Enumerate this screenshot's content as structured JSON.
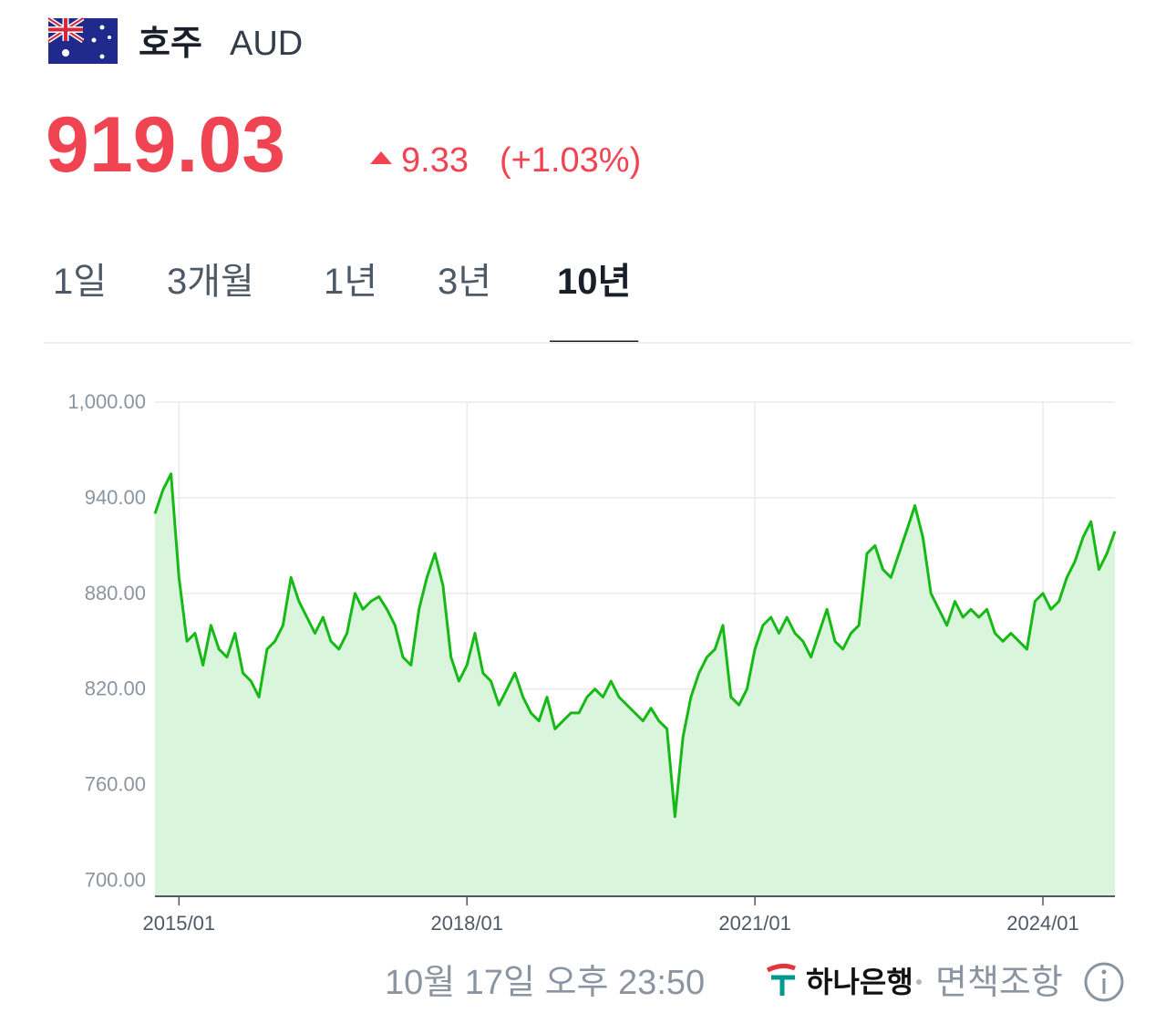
{
  "header": {
    "country": "호주",
    "currency": "AUD",
    "price": "919.03",
    "change": "9.33",
    "change_pct": "(+1.03%)"
  },
  "tabs": {
    "items": [
      "1일",
      "3개월",
      "1년",
      "3년",
      "10년"
    ],
    "active": 4
  },
  "chart_data": {
    "type": "area",
    "color": "#16b916",
    "fill": "#d9f5db",
    "grid": true,
    "x": [
      "2014/10",
      "2014/11",
      "2014/12",
      "2015/01",
      "2015/02",
      "2015/03",
      "2015/04",
      "2015/05",
      "2015/06",
      "2015/07",
      "2015/08",
      "2015/09",
      "2015/10",
      "2015/11",
      "2015/12",
      "2016/01",
      "2016/02",
      "2016/03",
      "2016/04",
      "2016/05",
      "2016/06",
      "2016/07",
      "2016/08",
      "2016/09",
      "2016/10",
      "2016/11",
      "2016/12",
      "2017/01",
      "2017/02",
      "2017/03",
      "2017/04",
      "2017/05",
      "2017/06",
      "2017/07",
      "2017/08",
      "2017/09",
      "2017/10",
      "2017/11",
      "2017/12",
      "2018/01",
      "2018/02",
      "2018/03",
      "2018/04",
      "2018/05",
      "2018/06",
      "2018/07",
      "2018/08",
      "2018/09",
      "2018/10",
      "2018/11",
      "2018/12",
      "2019/01",
      "2019/02",
      "2019/03",
      "2019/04",
      "2019/05",
      "2019/06",
      "2019/07",
      "2019/08",
      "2019/09",
      "2019/10",
      "2019/11",
      "2019/12",
      "2020/01",
      "2020/02",
      "2020/03",
      "2020/04",
      "2020/05",
      "2020/06",
      "2020/07",
      "2020/08",
      "2020/09",
      "2020/10",
      "2020/11",
      "2020/12",
      "2021/01",
      "2021/02",
      "2021/03",
      "2021/04",
      "2021/05",
      "2021/06",
      "2021/07",
      "2021/08",
      "2021/09",
      "2021/10",
      "2021/11",
      "2021/12",
      "2022/01",
      "2022/02",
      "2022/03",
      "2022/04",
      "2022/05",
      "2022/06",
      "2022/07",
      "2022/08",
      "2022/09",
      "2022/10",
      "2022/11",
      "2022/12",
      "2023/01",
      "2023/02",
      "2023/03",
      "2023/04",
      "2023/05",
      "2023/06",
      "2023/07",
      "2023/08",
      "2023/09",
      "2023/10",
      "2023/11",
      "2023/12",
      "2024/01",
      "2024/02",
      "2024/03",
      "2024/04",
      "2024/05",
      "2024/06",
      "2024/07",
      "2024/08",
      "2024/09",
      "2024/10"
    ],
    "values": [
      930,
      945,
      955,
      890,
      850,
      855,
      835,
      860,
      845,
      840,
      855,
      830,
      825,
      815,
      845,
      850,
      860,
      890,
      875,
      865,
      855,
      865,
      850,
      845,
      855,
      880,
      870,
      875,
      878,
      870,
      860,
      840,
      835,
      870,
      890,
      905,
      885,
      840,
      825,
      835,
      855,
      830,
      825,
      810,
      820,
      830,
      815,
      805,
      800,
      815,
      795,
      800,
      805,
      805,
      815,
      820,
      815,
      825,
      815,
      810,
      805,
      800,
      808,
      800,
      795,
      740,
      790,
      815,
      830,
      840,
      845,
      860,
      815,
      810,
      820,
      845,
      860,
      865,
      855,
      865,
      855,
      850,
      840,
      855,
      870,
      850,
      845,
      855,
      860,
      905,
      910,
      895,
      890,
      905,
      920,
      935,
      915,
      880,
      870,
      860,
      875,
      865,
      870,
      865,
      870,
      855,
      850,
      855,
      850,
      845,
      875,
      880,
      870,
      875,
      890,
      900,
      915,
      925,
      895,
      905,
      919.03
    ],
    "xlim": [
      "2014/10",
      "2024/10"
    ],
    "xticks": [
      "2015/01",
      "2018/01",
      "2021/01",
      "2024/01"
    ],
    "ylim": [
      690,
      1000
    ],
    "yticks": [
      {
        "value": 700,
        "label": "700.00"
      },
      {
        "value": 760,
        "label": "760.00"
      },
      {
        "value": 820,
        "label": "820.00"
      },
      {
        "value": 880,
        "label": "880.00"
      },
      {
        "value": 940,
        "label": "940.00"
      },
      {
        "value": 1000,
        "label": "1,000.00"
      }
    ]
  },
  "footer": {
    "timestamp": "10월 17일 오후 23:50",
    "provider": "하나은행",
    "disclaimer": "면책조항"
  }
}
